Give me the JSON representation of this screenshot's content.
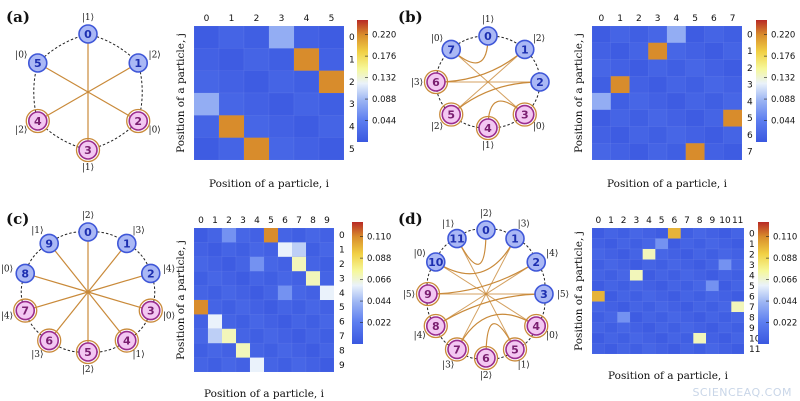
{
  "watermark": "SCIENCEAQ.COM",
  "colors": {
    "heat_stops": [
      "#3a58e0",
      "#5d7ef0",
      "#9bb4f3",
      "#eaf2fb",
      "#f6f89a",
      "#f1d044",
      "#d88c2c",
      "#b82a26"
    ],
    "node_blue_fill": "#aab8f5",
    "node_blue_ring": "#3f57d8",
    "node_pink_fill": "#f3c8f2",
    "node_pink_ring": "#9a2d8f",
    "node_text_blue": "#1d2fb0",
    "node_text_pink": "#7a1f70",
    "link": "#c98a3a"
  },
  "panels": [
    {
      "letter": "(a)",
      "chart_data": {
        "type": "heatmap",
        "n": 6,
        "xlabel": "Position of a particle, i",
        "ylabel": "Position of a particle, j",
        "x_ticks": [
          "0",
          "1",
          "2",
          "3",
          "4",
          "5"
        ],
        "y_ticks": [
          "0",
          "1",
          "2",
          "3",
          "4",
          "5"
        ],
        "vmax": 0.25,
        "colorbar_ticks": [
          "0.220",
          "0.176",
          "0.132",
          "0.088",
          "0.044"
        ],
        "colorbar_values": [
          0.22,
          0.176,
          0.132,
          0.088,
          0.044
        ],
        "cells": [
          {
            "i": 3,
            "j": 0,
            "v": 0.08
          },
          {
            "i": 4,
            "j": 1,
            "v": 0.22
          },
          {
            "i": 5,
            "j": 2,
            "v": 0.22
          },
          {
            "i": 0,
            "j": 3,
            "v": 0.08
          },
          {
            "i": 1,
            "j": 4,
            "v": 0.22
          },
          {
            "i": 2,
            "j": 5,
            "v": 0.22
          }
        ]
      },
      "ring": {
        "n": 6,
        "node_labels": [
          "0",
          "1",
          "2",
          "3",
          "4",
          "5"
        ],
        "pink": [
          2,
          3,
          4
        ],
        "kets": [
          "|0⟩",
          "|2⟩",
          "|0⟩",
          "|1⟩",
          "|2⟩",
          "|0⟩"
        ],
        "ket_at": [
          "|1⟩",
          "|2⟩",
          "|0⟩",
          "|1⟩",
          "|2⟩",
          "|0⟩"
        ],
        "hub": true
      }
    },
    {
      "letter": "(b)",
      "chart_data": {
        "type": "heatmap",
        "n": 8,
        "xlabel": "Position of a particle, i",
        "ylabel": "Position of a particle, j",
        "x_ticks": [
          "0",
          "1",
          "2",
          "3",
          "4",
          "5",
          "6",
          "7"
        ],
        "y_ticks": [
          "0",
          "1",
          "2",
          "3",
          "4",
          "5",
          "6",
          "7"
        ],
        "vmax": 0.25,
        "colorbar_ticks": [
          "0.220",
          "0.176",
          "0.132",
          "0.088",
          "0.044"
        ],
        "colorbar_values": [
          0.22,
          0.176,
          0.132,
          0.088,
          0.044
        ],
        "cells": [
          {
            "i": 4,
            "j": 0,
            "v": 0.08
          },
          {
            "i": 3,
            "j": 1,
            "v": 0.22
          },
          {
            "i": 1,
            "j": 3,
            "v": 0.22
          },
          {
            "i": 0,
            "j": 4,
            "v": 0.08
          },
          {
            "i": 7,
            "j": 5,
            "v": 0.22
          },
          {
            "i": 5,
            "j": 7,
            "v": 0.22
          }
        ]
      },
      "ring": {
        "n": 8,
        "node_labels": [
          "0",
          "1",
          "2",
          "3",
          "4",
          "5",
          "6",
          "7"
        ],
        "pink": [
          3,
          4,
          5,
          6
        ],
        "ket_at": [
          "|1⟩",
          "|2⟩",
          "",
          "|0⟩",
          "|1⟩",
          "|2⟩",
          "|3⟩",
          "|0⟩"
        ],
        "extra_kets": [
          "|3⟩"
        ],
        "hub": false
      }
    },
    {
      "letter": "(c)",
      "chart_data": {
        "type": "heatmap",
        "n": 10,
        "xlabel": "Position of a particle, i",
        "ylabel": "Position of a particle, j",
        "x_ticks": [
          "0",
          "1",
          "2",
          "3",
          "4",
          "5",
          "6",
          "7",
          "8",
          "9"
        ],
        "y_ticks": [
          "0",
          "1",
          "2",
          "3",
          "4",
          "5",
          "6",
          "7",
          "8",
          "9"
        ],
        "vmax": 0.125,
        "colorbar_ticks": [
          "0.110",
          "0.088",
          "0.066",
          "0.044",
          "0.022"
        ],
        "colorbar_values": [
          0.11,
          0.088,
          0.066,
          0.044,
          0.022
        ],
        "cells": [
          {
            "i": 5,
            "j": 0,
            "v": 0.11
          },
          {
            "i": 6,
            "j": 1,
            "v": 0.06
          },
          {
            "i": 7,
            "j": 1,
            "v": 0.05
          },
          {
            "i": 7,
            "j": 2,
            "v": 0.07
          },
          {
            "i": 8,
            "j": 3,
            "v": 0.07
          },
          {
            "i": 9,
            "j": 4,
            "v": 0.06
          },
          {
            "i": 0,
            "j": 5,
            "v": 0.11
          },
          {
            "i": 1,
            "j": 6,
            "v": 0.06
          },
          {
            "i": 1,
            "j": 7,
            "v": 0.05
          },
          {
            "i": 2,
            "j": 7,
            "v": 0.07
          },
          {
            "i": 3,
            "j": 8,
            "v": 0.07
          },
          {
            "i": 4,
            "j": 9,
            "v": 0.06
          },
          {
            "i": 2,
            "j": 0,
            "v": 0.03
          },
          {
            "i": 4,
            "j": 2,
            "v": 0.03
          },
          {
            "i": 6,
            "j": 4,
            "v": 0.03
          }
        ]
      },
      "ring": {
        "n": 10,
        "node_labels": [
          "0",
          "1",
          "2",
          "3",
          "4",
          "5",
          "6",
          "7",
          "8",
          "9"
        ],
        "pink": [
          3,
          4,
          5,
          6,
          7
        ],
        "ket_at": [
          "|2⟩",
          "|3⟩",
          "|4⟩",
          "|0⟩",
          "|1⟩",
          "|2⟩",
          "|3⟩",
          "|4⟩",
          "|0⟩",
          "|1⟩"
        ],
        "hub": true
      }
    },
    {
      "letter": "(d)",
      "chart_data": {
        "type": "heatmap",
        "n": 12,
        "xlabel": "Position of a particle, i",
        "ylabel": "Position of a particle, j",
        "x_ticks": [
          "0",
          "1",
          "2",
          "3",
          "4",
          "5",
          "6",
          "7",
          "8",
          "9",
          "10",
          "11"
        ],
        "y_ticks": [
          "0",
          "1",
          "2",
          "3",
          "4",
          "5",
          "6",
          "7",
          "8",
          "9",
          "10",
          "11"
        ],
        "vmax": 0.125,
        "colorbar_ticks": [
          "0.110",
          "0.088",
          "0.066",
          "0.044",
          "0.022"
        ],
        "colorbar_values": [
          0.11,
          0.088,
          0.066,
          0.044,
          0.022
        ],
        "cells": [
          {
            "i": 6,
            "j": 0,
            "v": 0.1
          },
          {
            "i": 5,
            "j": 1,
            "v": 0.03
          },
          {
            "i": 4,
            "j": 2,
            "v": 0.07
          },
          {
            "i": 3,
            "j": 4,
            "v": 0.07
          },
          {
            "i": 0,
            "j": 6,
            "v": 0.1
          },
          {
            "i": 11,
            "j": 7,
            "v": 0.07
          },
          {
            "i": 8,
            "j": 10,
            "v": 0.07
          },
          {
            "i": 9,
            "j": 5,
            "v": 0.03
          },
          {
            "i": 2,
            "j": 8,
            "v": 0.03
          },
          {
            "i": 10,
            "j": 3,
            "v": 0.03
          }
        ]
      },
      "ring": {
        "n": 12,
        "node_labels": [
          "0",
          "1",
          "2",
          "3",
          "4",
          "5",
          "6",
          "7",
          "8",
          "9",
          "10",
          "11"
        ],
        "pink": [
          4,
          5,
          6,
          7,
          8,
          9
        ],
        "ket_at": [
          "|2⟩",
          "|3⟩",
          "|4⟩",
          "|5⟩",
          "|0⟩",
          "|1⟩",
          "|2⟩",
          "|3⟩",
          "|4⟩",
          "|5⟩",
          "|0⟩",
          "|1⟩"
        ],
        "hub": false
      }
    }
  ]
}
